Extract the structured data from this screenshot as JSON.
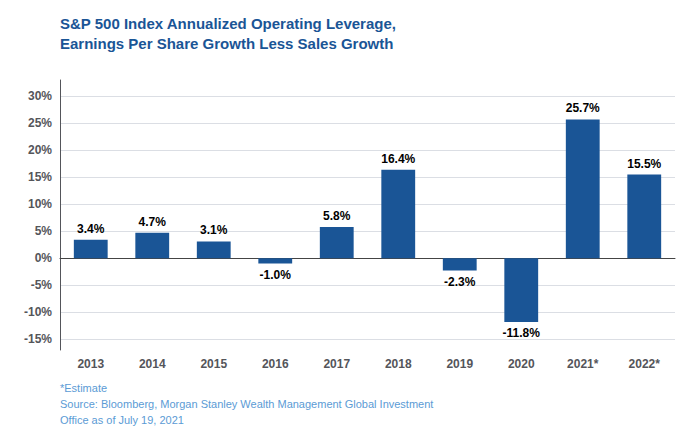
{
  "chart_data": {
    "type": "bar",
    "title": "S&P 500 Index Annualized Operating Leverage,\nEarnings Per Share Growth Less Sales Growth",
    "categories": [
      "2013",
      "2014",
      "2015",
      "2016",
      "2017",
      "2018",
      "2019",
      "2020",
      "2021*",
      "2022*"
    ],
    "values": [
      3.4,
      4.7,
      3.1,
      -1.0,
      5.8,
      16.4,
      -2.3,
      -11.8,
      25.7,
      15.5
    ],
    "value_labels": [
      "3.4%",
      "4.7%",
      "3.1%",
      "-1.0%",
      "5.8%",
      "16.4%",
      "-2.3%",
      "-11.8%",
      "25.7%",
      "15.5%"
    ],
    "data_labels": true,
    "color": "#1a5596",
    "ylim": [
      -17,
      33
    ],
    "yticks": [
      {
        "value": -15,
        "label": "-15%"
      },
      {
        "value": -10,
        "label": "-10%"
      },
      {
        "value": -5,
        "label": "-5%"
      },
      {
        "value": 0,
        "label": "0%"
      },
      {
        "value": 5,
        "label": "5%"
      },
      {
        "value": 10,
        "label": "10%"
      },
      {
        "value": 15,
        "label": "15%"
      },
      {
        "value": 20,
        "label": "20%"
      },
      {
        "value": 25,
        "label": "25%"
      },
      {
        "value": 30,
        "label": "30%"
      }
    ],
    "grid": true,
    "annotations": [
      "*Estimate",
      "Source: Bloomberg, Morgan Stanley Wealth Management Global Investment",
      "Office as of July 19, 2021"
    ]
  }
}
